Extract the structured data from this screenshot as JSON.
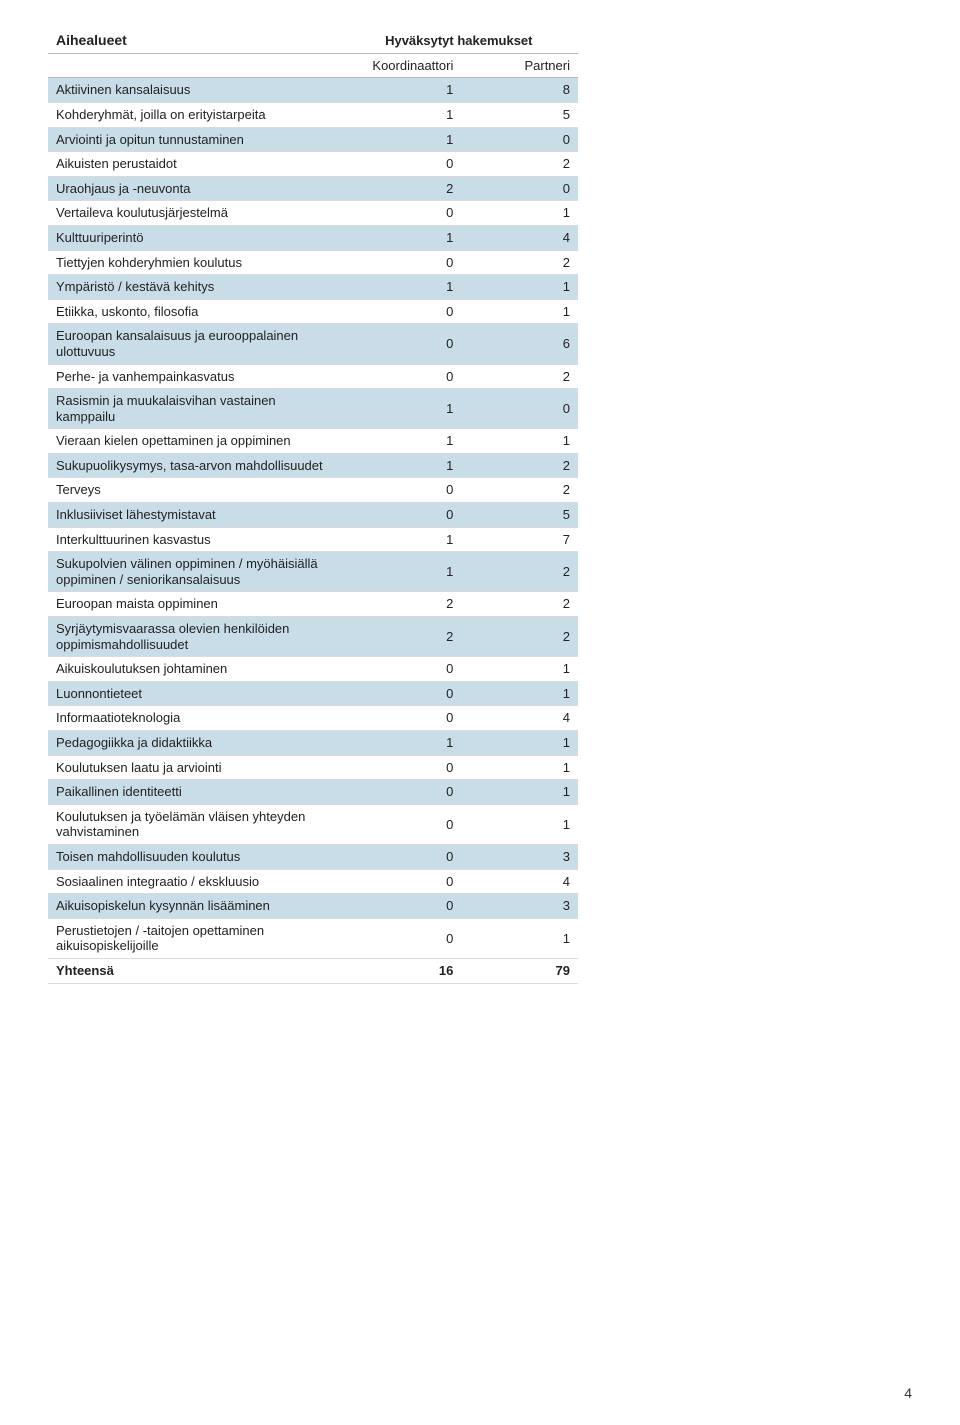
{
  "table": {
    "title": "Aihealueet",
    "supertitle": "Hyväksytyt hakemukset",
    "columns": [
      "Koordinaattori",
      "Partneri"
    ],
    "stripe_color": "#c9dde9",
    "border_color": "#dadada",
    "header_border_color": "#b7b7b7",
    "font_size": 13,
    "rows": [
      {
        "label": "Aktiivinen kansalaisuus",
        "c": "1",
        "p": "8",
        "striped": true
      },
      {
        "label": "Kohderyhmät, joilla on erityistarpeita",
        "c": "1",
        "p": "5",
        "striped": false
      },
      {
        "label": "Arviointi ja opitun tunnustaminen",
        "c": "1",
        "p": "0",
        "striped": true
      },
      {
        "label": "Aikuisten perustaidot",
        "c": "0",
        "p": "2",
        "striped": false
      },
      {
        "label": "Uraohjaus ja -neuvonta",
        "c": "2",
        "p": "0",
        "striped": true
      },
      {
        "label": "Vertaileva koulutusjärjestelmä",
        "c": "0",
        "p": "1",
        "striped": false
      },
      {
        "label": "Kulttuuriperintö",
        "c": "1",
        "p": "4",
        "striped": true
      },
      {
        "label": "Tiettyjen kohderyhmien koulutus",
        "c": "0",
        "p": "2",
        "striped": false
      },
      {
        "label": "Ympäristö / kestävä kehitys",
        "c": "1",
        "p": "1",
        "striped": true
      },
      {
        "label": "Etiikka, uskonto, filosofia",
        "c": "0",
        "p": "1",
        "striped": false
      },
      {
        "label": "Euroopan kansalaisuus ja eurooppalainen ulottuvuus",
        "c": "0",
        "p": "6",
        "striped": true
      },
      {
        "label": "Perhe- ja vanhempainkasvatus",
        "c": "0",
        "p": "2",
        "striped": false
      },
      {
        "label": "Rasismin ja muukalaisvihan vastainen kamppailu",
        "c": "1",
        "p": "0",
        "striped": true
      },
      {
        "label": "Vieraan kielen opettaminen ja oppiminen",
        "c": "1",
        "p": "1",
        "striped": false
      },
      {
        "label": "Sukupuolikysymys, tasa-arvon mahdollisuudet",
        "c": "1",
        "p": "2",
        "striped": true
      },
      {
        "label": "Terveys",
        "c": "0",
        "p": "2",
        "striped": false
      },
      {
        "label": "Inklusiiviset lähestymistavat",
        "c": "0",
        "p": "5",
        "striped": true
      },
      {
        "label": "Interkulttuurinen kasvastus",
        "c": "1",
        "p": "7",
        "striped": false
      },
      {
        "label": "Sukupolvien välinen oppiminen / myöhäisiällä oppiminen / seniorikansalaisuus",
        "c": "1",
        "p": "2",
        "striped": true
      },
      {
        "label": "Euroopan maista oppiminen",
        "c": "2",
        "p": "2",
        "striped": false
      },
      {
        "label": "Syrjäytymisvaarassa olevien henkilöiden oppimismahdollisuudet",
        "c": "2",
        "p": "2",
        "striped": true
      },
      {
        "label": "Aikuiskoulutuksen johtaminen",
        "c": "0",
        "p": "1",
        "striped": false
      },
      {
        "label": "Luonnontieteet",
        "c": "0",
        "p": "1",
        "striped": true
      },
      {
        "label": "Informaatioteknologia",
        "c": "0",
        "p": "4",
        "striped": false
      },
      {
        "label": "Pedagogiikka ja didaktiikka",
        "c": "1",
        "p": "1",
        "striped": true
      },
      {
        "label": "Koulutuksen laatu ja arviointi",
        "c": "0",
        "p": "1",
        "striped": false
      },
      {
        "label": "Paikallinen identiteetti",
        "c": "0",
        "p": "1",
        "striped": true
      },
      {
        "label": "Koulutuksen ja työelämän vläisen yhteyden vahvistaminen",
        "c": "0",
        "p": "1",
        "striped": false
      },
      {
        "label": "Toisen mahdollisuuden koulutus",
        "c": "0",
        "p": "3",
        "striped": true
      },
      {
        "label": "Sosiaalinen integraatio / ekskluusio",
        "c": "0",
        "p": "4",
        "striped": false
      },
      {
        "label": "Aikuisopiskelun kysynnän lisääminen",
        "c": "0",
        "p": "3",
        "striped": true
      },
      {
        "label": "Perustietojen / -taitojen opettaminen aikuisopiskelijoille",
        "c": "0",
        "p": "1",
        "striped": false
      }
    ],
    "total": {
      "label": "Yhteensä",
      "c": "16",
      "p": "79"
    }
  },
  "page_number": "4"
}
